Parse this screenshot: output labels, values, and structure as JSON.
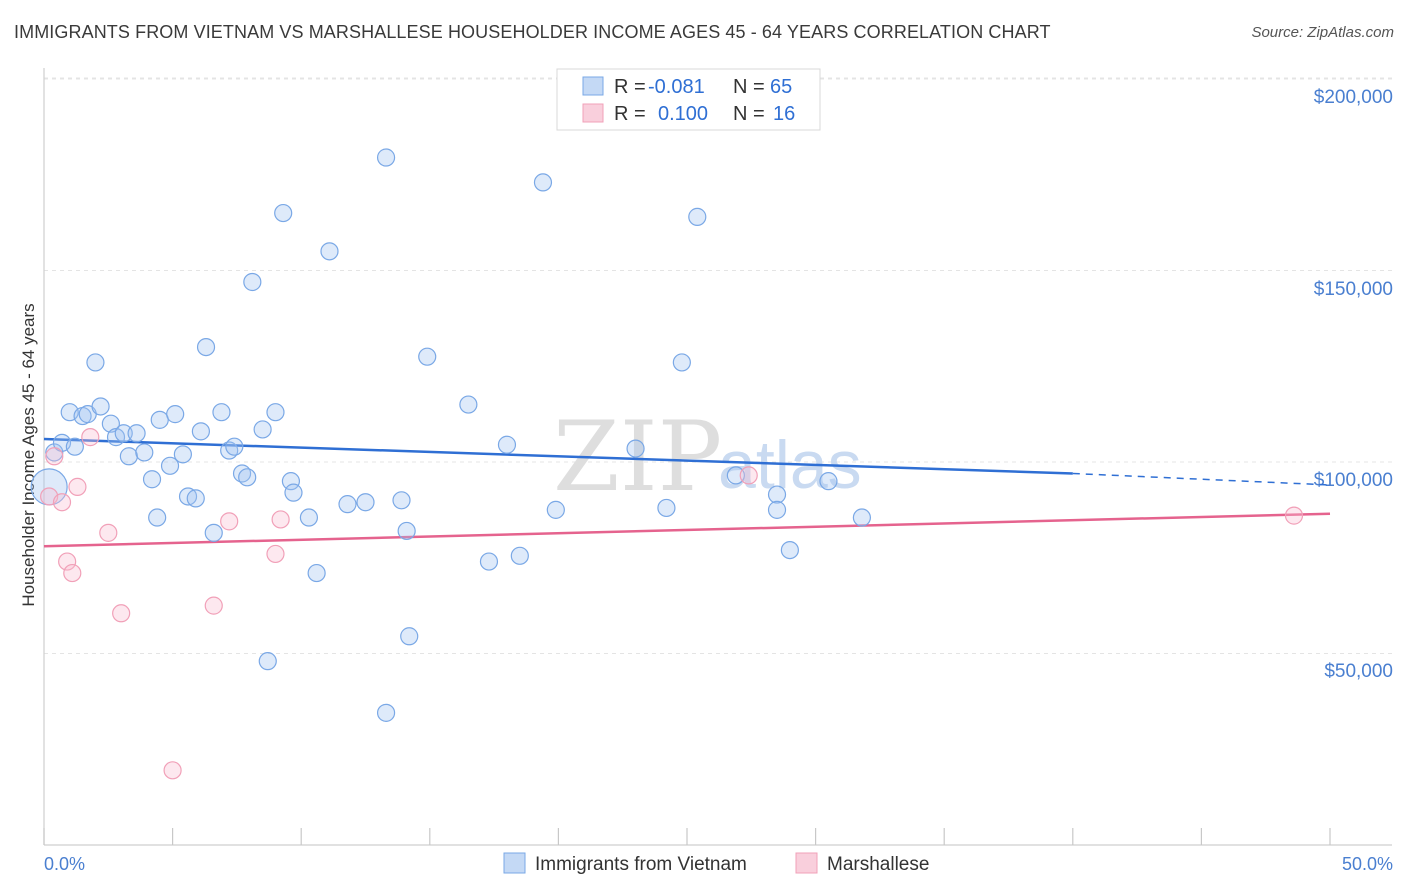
{
  "title": "IMMIGRANTS FROM VIETNAM VS MARSHALLESE HOUSEHOLDER INCOME AGES 45 - 64 YEARS CORRELATION CHART",
  "source": "Source: ZipAtlas.com",
  "watermark": {
    "zip": "ZIP",
    "atlas": "atlas"
  },
  "colors": {
    "blue": "#7aa8e6",
    "blue_line": "#2f6fd4",
    "pink": "#f1a0b8",
    "pink_line": "#e5638e"
  },
  "legend": {
    "rows": [
      {
        "r_label": "R =",
        "r_value": "-0.081",
        "n_label": "N =",
        "n_value": "65"
      },
      {
        "r_label": "R =",
        "r_value": "0.100",
        "n_label": "N =",
        "n_value": "16"
      }
    ]
  },
  "chart_data": {
    "type": "scatter",
    "title": "IMMIGRANTS FROM VIETNAM VS MARSHALLESE HOUSEHOLDER INCOME AGES 45 - 64 YEARS CORRELATION CHART",
    "xlabel": "",
    "ylabel": "Householder Income Ages 45 - 64 years",
    "xlim": [
      0,
      50
    ],
    "ylim": [
      0,
      210000
    ],
    "x_tick_labels": [
      "0.0%",
      "50.0%"
    ],
    "y_ticks": [
      50000,
      100000,
      150000,
      200000
    ],
    "y_tick_labels": [
      "$50,000",
      "$100,000",
      "$150,000",
      "$200,000"
    ],
    "grid": true,
    "legend_position": "top-center",
    "series": [
      {
        "name": "Immigrants from Vietnam",
        "color": "#7aa8e6",
        "trend": {
          "x": [
            0,
            40
          ],
          "y": [
            106000,
            97000
          ],
          "dashed_to": [
            50,
            94000
          ]
        },
        "points": [
          {
            "x": 0.2,
            "y": 93500
          },
          {
            "x": 0.4,
            "y": 102500
          },
          {
            "x": 0.7,
            "y": 105000
          },
          {
            "x": 1.0,
            "y": 113000
          },
          {
            "x": 1.2,
            "y": 104000
          },
          {
            "x": 1.5,
            "y": 112000
          },
          {
            "x": 1.7,
            "y": 112500
          },
          {
            "x": 2.0,
            "y": 126000
          },
          {
            "x": 2.2,
            "y": 114500
          },
          {
            "x": 2.6,
            "y": 110000
          },
          {
            "x": 2.8,
            "y": 106500
          },
          {
            "x": 3.1,
            "y": 107500
          },
          {
            "x": 3.3,
            "y": 101500
          },
          {
            "x": 3.6,
            "y": 107500
          },
          {
            "x": 3.9,
            "y": 102500
          },
          {
            "x": 4.2,
            "y": 95500
          },
          {
            "x": 4.4,
            "y": 85500
          },
          {
            "x": 4.5,
            "y": 111000
          },
          {
            "x": 4.9,
            "y": 99000
          },
          {
            "x": 5.1,
            "y": 112500
          },
          {
            "x": 5.4,
            "y": 102000
          },
          {
            "x": 5.6,
            "y": 91000
          },
          {
            "x": 5.9,
            "y": 90500
          },
          {
            "x": 6.1,
            "y": 108000
          },
          {
            "x": 6.3,
            "y": 130000
          },
          {
            "x": 6.6,
            "y": 81500
          },
          {
            "x": 6.9,
            "y": 113000
          },
          {
            "x": 7.2,
            "y": 103000
          },
          {
            "x": 7.4,
            "y": 104000
          },
          {
            "x": 7.7,
            "y": 97000
          },
          {
            "x": 7.9,
            "y": 96000
          },
          {
            "x": 8.1,
            "y": 147000
          },
          {
            "x": 8.5,
            "y": 108500
          },
          {
            "x": 8.7,
            "y": 48000
          },
          {
            "x": 9.0,
            "y": 113000
          },
          {
            "x": 9.3,
            "y": 165000
          },
          {
            "x": 9.6,
            "y": 95000
          },
          {
            "x": 9.7,
            "y": 92000
          },
          {
            "x": 10.3,
            "y": 85500
          },
          {
            "x": 10.6,
            "y": 71000
          },
          {
            "x": 11.1,
            "y": 155000
          },
          {
            "x": 11.8,
            "y": 89000
          },
          {
            "x": 12.5,
            "y": 89500
          },
          {
            "x": 13.3,
            "y": 179500
          },
          {
            "x": 13.3,
            "y": 34500
          },
          {
            "x": 13.9,
            "y": 90000
          },
          {
            "x": 14.1,
            "y": 82000
          },
          {
            "x": 14.2,
            "y": 54500
          },
          {
            "x": 14.9,
            "y": 127500
          },
          {
            "x": 16.5,
            "y": 115000
          },
          {
            "x": 17.3,
            "y": 74000
          },
          {
            "x": 18.0,
            "y": 104500
          },
          {
            "x": 18.5,
            "y": 75500
          },
          {
            "x": 19.4,
            "y": 173000
          },
          {
            "x": 19.9,
            "y": 87500
          },
          {
            "x": 23.0,
            "y": 103500
          },
          {
            "x": 24.2,
            "y": 88000
          },
          {
            "x": 24.8,
            "y": 126000
          },
          {
            "x": 25.4,
            "y": 164000
          },
          {
            "x": 26.9,
            "y": 96500
          },
          {
            "x": 28.5,
            "y": 91500
          },
          {
            "x": 28.5,
            "y": 87500
          },
          {
            "x": 29.0,
            "y": 77000
          },
          {
            "x": 30.5,
            "y": 95000
          },
          {
            "x": 31.8,
            "y": 85500
          }
        ]
      },
      {
        "name": "Marshallese",
        "color": "#f1a0b8",
        "trend": {
          "x": [
            0,
            50
          ],
          "y": [
            78000,
            86500
          ]
        },
        "points": [
          {
            "x": 0.2,
            "y": 91000
          },
          {
            "x": 0.4,
            "y": 101500
          },
          {
            "x": 0.7,
            "y": 89500
          },
          {
            "x": 0.9,
            "y": 74000
          },
          {
            "x": 1.1,
            "y": 71000
          },
          {
            "x": 1.3,
            "y": 93500
          },
          {
            "x": 1.8,
            "y": 106500
          },
          {
            "x": 2.5,
            "y": 81500
          },
          {
            "x": 3.0,
            "y": 60500
          },
          {
            "x": 5.0,
            "y": 19500
          },
          {
            "x": 6.6,
            "y": 62500
          },
          {
            "x": 7.2,
            "y": 84500
          },
          {
            "x": 9.0,
            "y": 76000
          },
          {
            "x": 9.2,
            "y": 85000
          },
          {
            "x": 27.4,
            "y": 96500
          },
          {
            "x": 48.6,
            "y": 86000
          }
        ]
      }
    ]
  }
}
